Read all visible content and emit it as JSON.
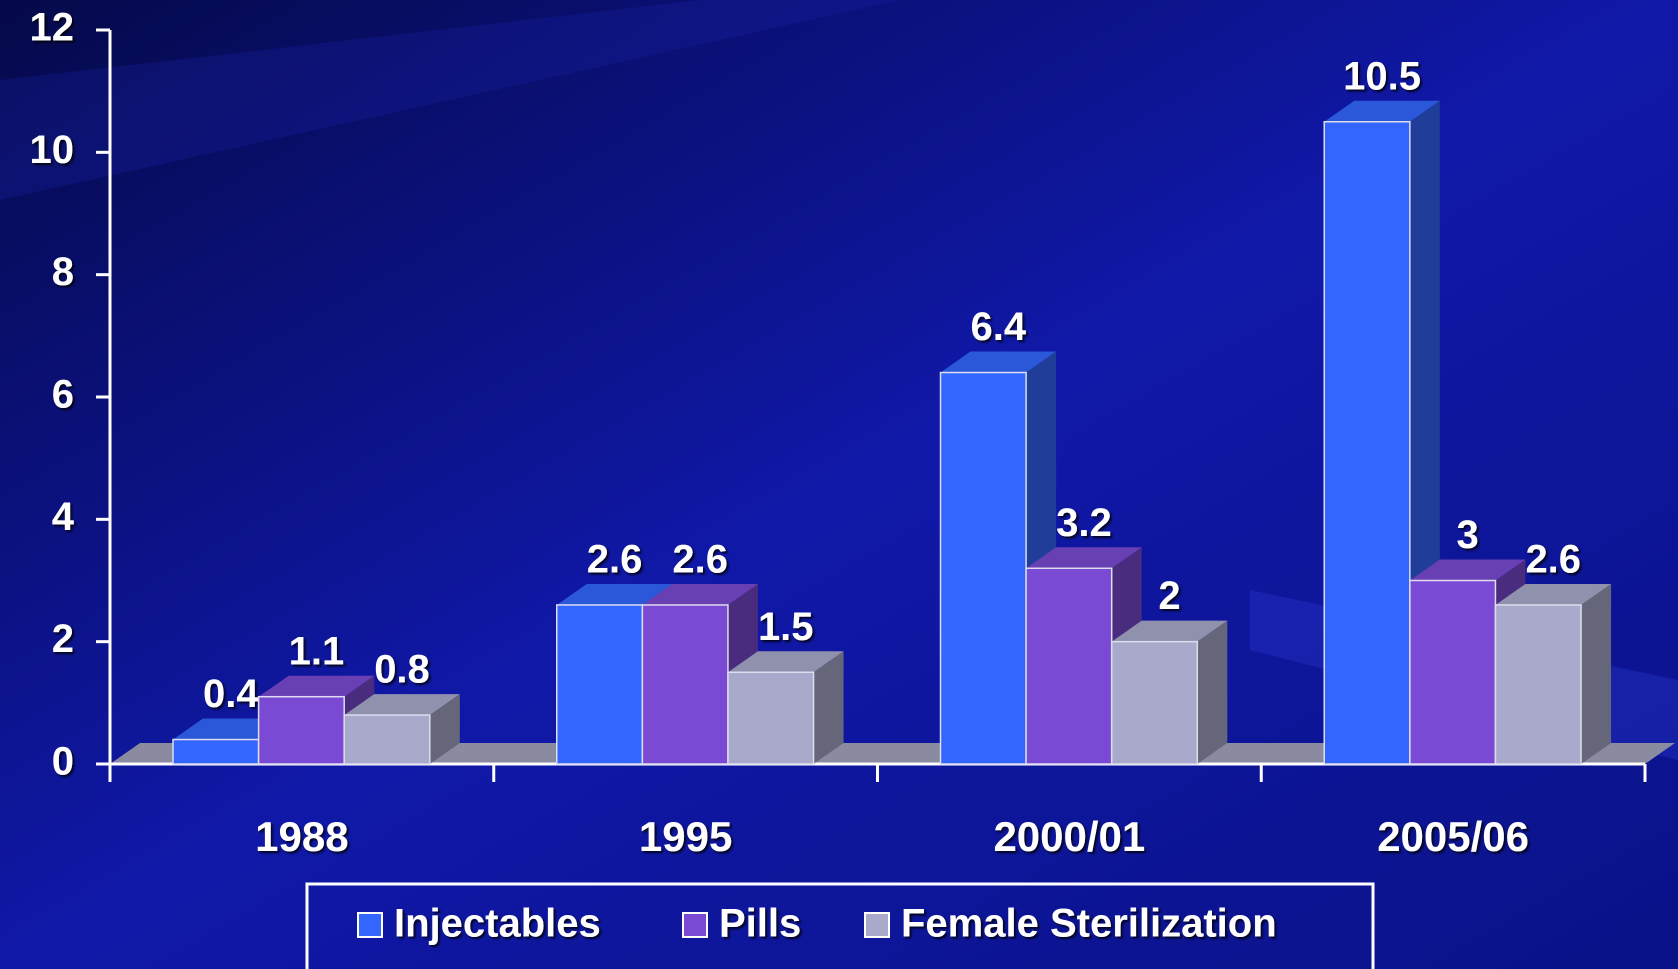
{
  "chart_data": {
    "type": "bar3d",
    "categories": [
      "1988",
      "1995",
      "2000/01",
      "2005/06"
    ],
    "series": [
      {
        "name": "Injectables",
        "color": "#3366ff",
        "values": [
          0.4,
          2.6,
          6.4,
          10.5
        ]
      },
      {
        "name": "Pills",
        "color": "#7b4ad4",
        "values": [
          1.1,
          2.6,
          3.2,
          3
        ]
      },
      {
        "name": "Female Sterilization",
        "color": "#a9aacb",
        "values": [
          0.8,
          1.5,
          2,
          2.6
        ]
      }
    ],
    "ylim": [
      0,
      12
    ],
    "yticks": [
      0,
      2,
      4,
      6,
      8,
      10,
      12
    ],
    "legend": "bottom"
  }
}
